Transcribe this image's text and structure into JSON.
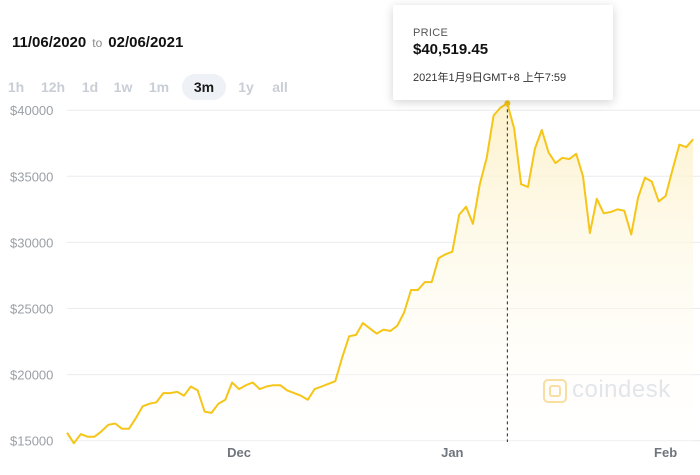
{
  "date_range": {
    "start": "11/06/2020",
    "to": "to",
    "end": "02/06/2021"
  },
  "range_buttons": [
    {
      "label": "1h",
      "active": false
    },
    {
      "label": "12h",
      "active": false
    },
    {
      "label": "1d",
      "active": false
    },
    {
      "label": "1w",
      "active": false
    },
    {
      "label": "1m",
      "active": false
    },
    {
      "label": "3m",
      "active": true
    },
    {
      "label": "1y",
      "active": false
    },
    {
      "label": "all",
      "active": false
    }
  ],
  "tooltip": {
    "label": "PRICE",
    "value": "$40,519.45",
    "time": "2021年1月9日GMT+8 上午7:59"
  },
  "watermark": {
    "text": "coindesk"
  },
  "colors": {
    "line": "#f5c518",
    "fill_top": "#fdf1c8",
    "grid": "#e9ecef",
    "tick_label": "#9aa0a6"
  },
  "chart_data": {
    "type": "area",
    "title": "",
    "xlabel": "",
    "ylabel": "",
    "x_range": [
      "2020-11-06",
      "2021-02-06"
    ],
    "ylim": [
      15000,
      41000
    ],
    "yticks": [
      15000,
      20000,
      25000,
      30000,
      35000,
      40000
    ],
    "ytick_labels": [
      "$15000",
      "$20000",
      "$25000",
      "$30000",
      "$35000",
      "$40000"
    ],
    "xtick_labels": [
      {
        "label": "Dec",
        "date": "2020-12-01"
      },
      {
        "label": "Jan",
        "date": "2021-01-01"
      },
      {
        "label": "Feb",
        "date": "2021-02-01"
      }
    ],
    "grid": true,
    "highlight": {
      "date": "2021-01-09",
      "value": 40519.45
    },
    "series": [
      {
        "name": "",
        "points": [
          [
            "2020-11-06",
            15600
          ],
          [
            "2020-11-07",
            14800
          ],
          [
            "2020-11-08",
            15500
          ],
          [
            "2020-11-09",
            15300
          ],
          [
            "2020-11-10",
            15300
          ],
          [
            "2020-11-11",
            15700
          ],
          [
            "2020-11-12",
            16200
          ],
          [
            "2020-11-13",
            16300
          ],
          [
            "2020-11-14",
            15900
          ],
          [
            "2020-11-15",
            15900
          ],
          [
            "2020-11-16",
            16700
          ],
          [
            "2020-11-17",
            17600
          ],
          [
            "2020-11-18",
            17800
          ],
          [
            "2020-11-19",
            17900
          ],
          [
            "2020-11-20",
            18600
          ],
          [
            "2020-11-21",
            18600
          ],
          [
            "2020-11-22",
            18700
          ],
          [
            "2020-11-23",
            18400
          ],
          [
            "2020-11-24",
            19100
          ],
          [
            "2020-11-25",
            18800
          ],
          [
            "2020-11-26",
            17200
          ],
          [
            "2020-11-27",
            17100
          ],
          [
            "2020-11-28",
            17800
          ],
          [
            "2020-11-29",
            18100
          ],
          [
            "2020-11-30",
            19400
          ],
          [
            "2020-12-01",
            18900
          ],
          [
            "2020-12-02",
            19200
          ],
          [
            "2020-12-03",
            19400
          ],
          [
            "2020-12-04",
            18900
          ],
          [
            "2020-12-05",
            19100
          ],
          [
            "2020-12-06",
            19200
          ],
          [
            "2020-12-07",
            19200
          ],
          [
            "2020-12-08",
            18800
          ],
          [
            "2020-12-09",
            18600
          ],
          [
            "2020-12-10",
            18400
          ],
          [
            "2020-12-11",
            18100
          ],
          [
            "2020-12-12",
            18900
          ],
          [
            "2020-12-13",
            19100
          ],
          [
            "2020-12-14",
            19300
          ],
          [
            "2020-12-15",
            19500
          ],
          [
            "2020-12-16",
            21300
          ],
          [
            "2020-12-17",
            22900
          ],
          [
            "2020-12-18",
            23000
          ],
          [
            "2020-12-19",
            23900
          ],
          [
            "2020-12-20",
            23500
          ],
          [
            "2020-12-21",
            23100
          ],
          [
            "2020-12-22",
            23400
          ],
          [
            "2020-12-23",
            23300
          ],
          [
            "2020-12-24",
            23700
          ],
          [
            "2020-12-25",
            24700
          ],
          [
            "2020-12-26",
            26400
          ],
          [
            "2020-12-27",
            26400
          ],
          [
            "2020-12-28",
            27000
          ],
          [
            "2020-12-29",
            27000
          ],
          [
            "2020-12-30",
            28800
          ],
          [
            "2020-12-31",
            29100
          ],
          [
            "2021-01-01",
            29300
          ],
          [
            "2021-01-02",
            32100
          ],
          [
            "2021-01-03",
            32700
          ],
          [
            "2021-01-04",
            31400
          ],
          [
            "2021-01-05",
            34400
          ],
          [
            "2021-01-06",
            36400
          ],
          [
            "2021-01-07",
            39600
          ],
          [
            "2021-01-08",
            40200
          ],
          [
            "2021-01-09",
            40519.45
          ],
          [
            "2021-01-10",
            38600
          ],
          [
            "2021-01-11",
            34400
          ],
          [
            "2021-01-12",
            34200
          ],
          [
            "2021-01-13",
            37100
          ],
          [
            "2021-01-14",
            38500
          ],
          [
            "2021-01-15",
            36800
          ],
          [
            "2021-01-16",
            36000
          ],
          [
            "2021-01-17",
            36400
          ],
          [
            "2021-01-18",
            36300
          ],
          [
            "2021-01-19",
            36700
          ],
          [
            "2021-01-20",
            35000
          ],
          [
            "2021-01-21",
            30700
          ],
          [
            "2021-01-22",
            33300
          ],
          [
            "2021-01-23",
            32200
          ],
          [
            "2021-01-24",
            32300
          ],
          [
            "2021-01-25",
            32500
          ],
          [
            "2021-01-26",
            32400
          ],
          [
            "2021-01-27",
            30600
          ],
          [
            "2021-01-28",
            33400
          ],
          [
            "2021-01-29",
            34900
          ],
          [
            "2021-01-30",
            34600
          ],
          [
            "2021-01-31",
            33100
          ],
          [
            "2021-02-01",
            33500
          ],
          [
            "2021-02-02",
            35500
          ],
          [
            "2021-02-03",
            37400
          ],
          [
            "2021-02-04",
            37200
          ],
          [
            "2021-02-05",
            37800
          ]
        ]
      }
    ]
  }
}
